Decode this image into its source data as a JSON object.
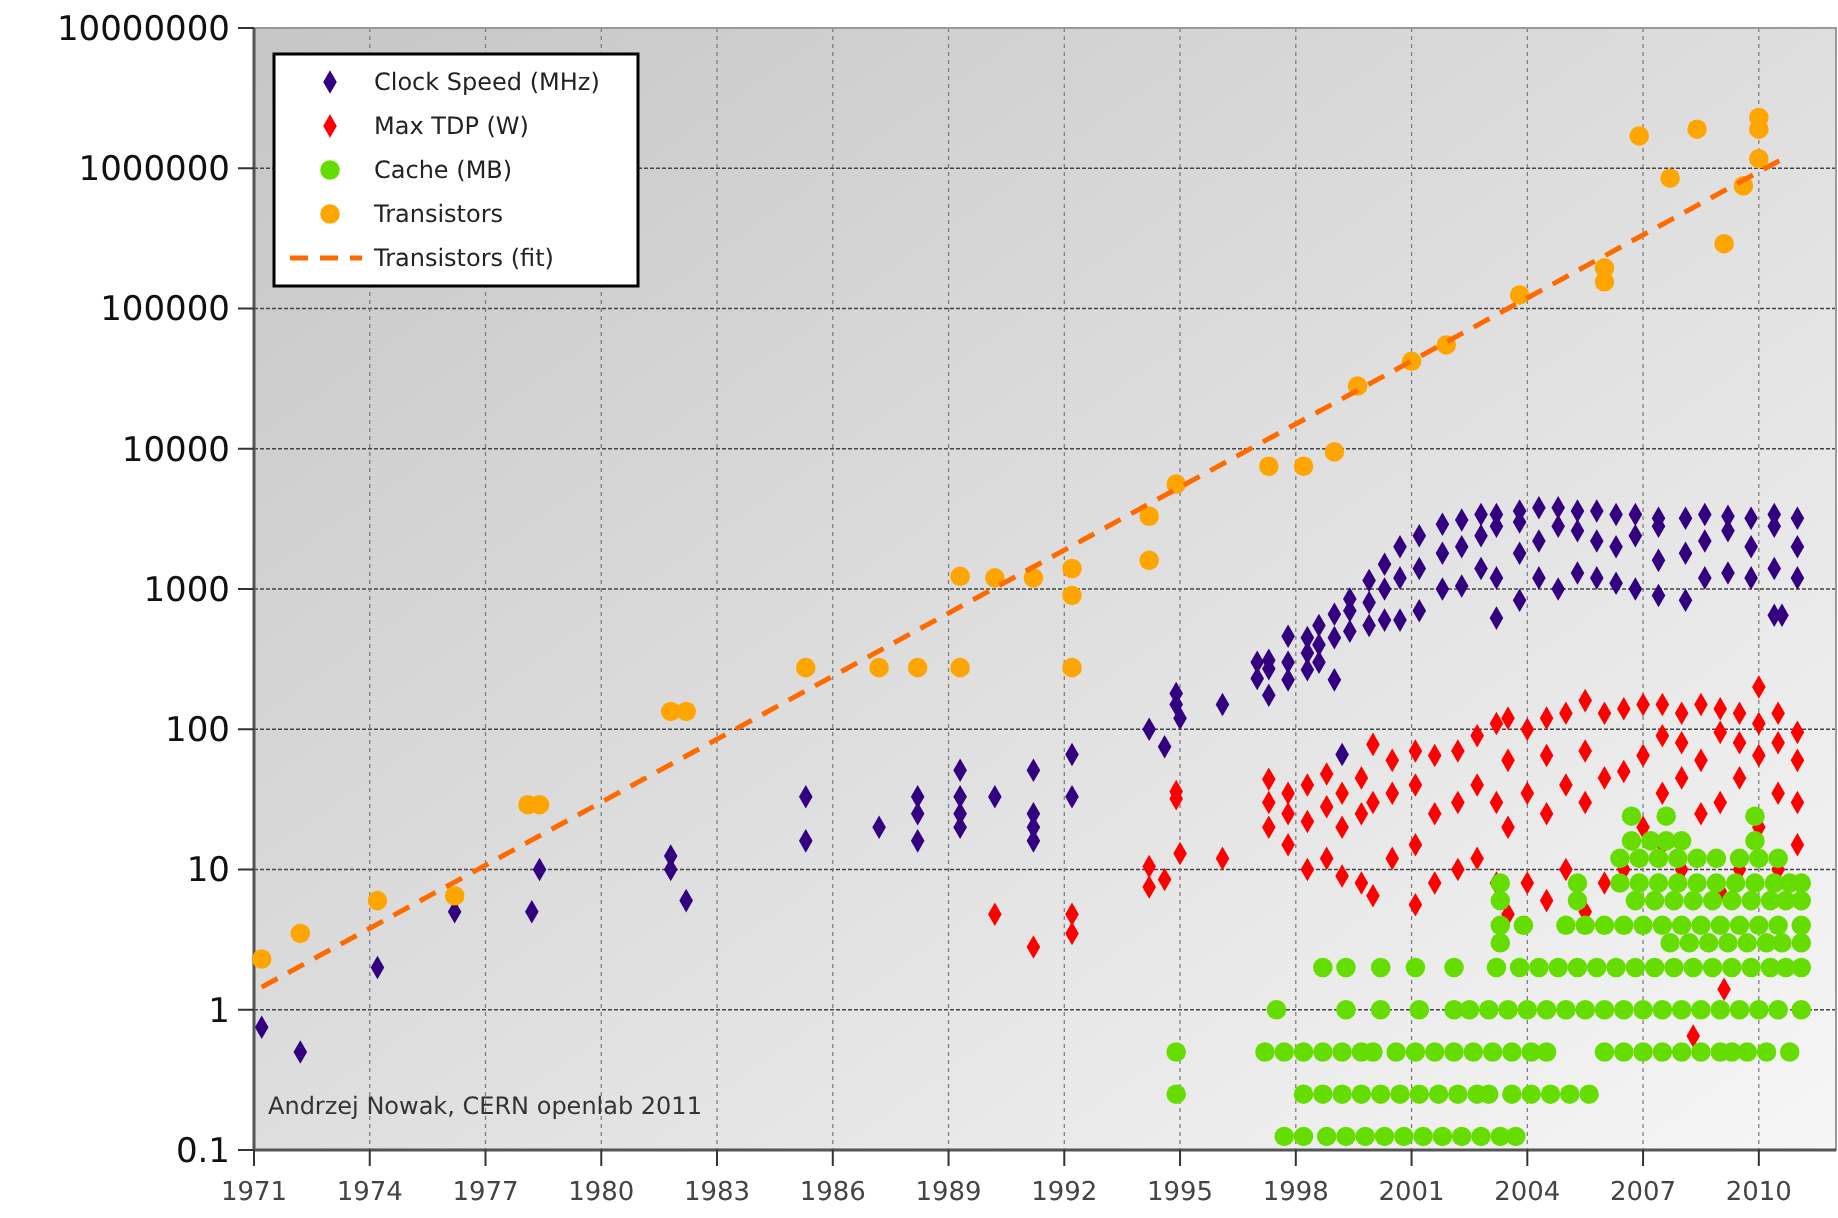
{
  "chart_data": {
    "type": "scatter",
    "xlim": [
      1971,
      2012
    ],
    "xticks": [
      1971,
      1974,
      1977,
      1980,
      1983,
      1986,
      1989,
      1992,
      1995,
      1998,
      2001,
      2004,
      2007,
      2010
    ],
    "ylim": [
      0.1,
      10000000
    ],
    "yticks": [
      0.1,
      1,
      10,
      100,
      1000,
      10000,
      100000,
      1000000,
      10000000
    ],
    "log": "y",
    "grid": true,
    "legend": "top left",
    "annotations": [
      "Andrzej Nowak, CERN openlab 2011"
    ],
    "series": [
      {
        "name": "Clock Speed (MHz)",
        "type": "scatter",
        "marker": "diamond",
        "color": "#330080",
        "x": [
          1971.2,
          1972.2,
          1974.2,
          1976.2,
          1978.2,
          1978.4,
          1981.8,
          1981.8,
          1982.2,
          1985.3,
          1985.3,
          1987.2,
          1988.2,
          1988.2,
          1988.2,
          1989.3,
          1989.3,
          1989.3,
          1989.3,
          1990.2,
          1991.2,
          1991.2,
          1991.2,
          1991.2,
          1992.2,
          1992.2,
          1994.2,
          1994.6,
          1994.9,
          1994.9,
          1995.0,
          1996.1,
          1999.2,
          1997.0,
          1997.0,
          1997.3,
          1997.3,
          1997.3,
          1997.8,
          1997.8,
          1997.8,
          1998.3,
          1998.3,
          1998.3,
          1998.6,
          1998.6,
          1998.6,
          1999.0,
          1999.0,
          1999.0,
          1999.4,
          1999.4,
          1999.4,
          1999.9,
          1999.9,
          1999.9,
          2000.3,
          2000.3,
          2000.3,
          2000.7,
          2000.7,
          2000.7,
          2001.2,
          2001.2,
          2001.2,
          2001.8,
          2001.8,
          2001.8,
          2002.3,
          2002.3,
          2002.3,
          2002.8,
          2002.8,
          2002.8,
          2003.2,
          2003.2,
          2003.2,
          2003.2,
          2003.8,
          2003.8,
          2003.8,
          2003.8,
          2004.3,
          2004.3,
          2004.3,
          2004.8,
          2004.8,
          2004.8,
          2005.3,
          2005.3,
          2005.3,
          2005.8,
          2005.8,
          2005.8,
          2006.3,
          2006.3,
          2006.3,
          2006.8,
          2006.8,
          2006.8,
          2007.4,
          2007.4,
          2007.4,
          2007.4,
          2008.1,
          2008.1,
          2008.1,
          2008.6,
          2008.6,
          2008.6,
          2009.2,
          2009.2,
          2009.2,
          2009.8,
          2009.8,
          2009.8,
          2010.4,
          2010.4,
          2010.4,
          2010.4,
          2010.6,
          2011.0,
          2011.0,
          2011.0
        ],
        "values": [
          0.75,
          0.5,
          2,
          5,
          5,
          10,
          12.5,
          10,
          6,
          33,
          16,
          20,
          33,
          25,
          16,
          51,
          33,
          25,
          20,
          33,
          51,
          25,
          20,
          16,
          66,
          33,
          100,
          75,
          180,
          150,
          120,
          150,
          66,
          230,
          300,
          175,
          310,
          270,
          225,
          300,
          460,
          266,
          350,
          450,
          300,
          400,
          550,
          225,
          450,
          660,
          500,
          700,
          850,
          550,
          800,
          1150,
          600,
          1000,
          1500,
          600,
          1200,
          2000,
          700,
          1400,
          2400,
          1000,
          1800,
          2900,
          1050,
          2000,
          3100,
          1400,
          2400,
          3400,
          620,
          1200,
          2800,
          3400,
          830,
          1800,
          3000,
          3600,
          1200,
          2200,
          3800,
          1000,
          2800,
          3800,
          1300,
          2600,
          3600,
          1200,
          2200,
          3600,
          1100,
          2000,
          3400,
          1000,
          2400,
          3400,
          900,
          1600,
          2800,
          3200,
          830,
          1800,
          3200,
          1200,
          2200,
          3400,
          1300,
          2600,
          3300,
          1200,
          2000,
          3200,
          650,
          1400,
          2800,
          3400,
          650,
          1200,
          2000,
          3200
        ]
      },
      {
        "name": "Max TDP (W)",
        "type": "scatter",
        "marker": "diamond",
        "color": "#ff0000",
        "x": [
          1990.2,
          1991.2,
          1992.2,
          1992.2,
          1994.2,
          1994.2,
          1994.6,
          1994.9,
          1994.9,
          1995.0,
          1996.1,
          1997.3,
          1997.3,
          1997.3,
          1997.8,
          1997.8,
          1997.8,
          1998.3,
          1998.3,
          1998.3,
          1998.8,
          1998.8,
          1998.8,
          1999.2,
          1999.2,
          1999.2,
          1999.7,
          1999.7,
          1999.7,
          2000.0,
          2000.0,
          2000.0,
          2000.5,
          2000.5,
          2000.5,
          2001.1,
          2001.1,
          2001.1,
          2001.1,
          2001.6,
          2001.6,
          2001.6,
          2002.2,
          2002.2,
          2002.2,
          2002.7,
          2002.7,
          2002.7,
          2003.2,
          2003.2,
          2003.2,
          2003.5,
          2003.5,
          2003.5,
          2003.5,
          2004.0,
          2004.0,
          2004.0,
          2004.5,
          2004.5,
          2004.5,
          2004.5,
          2005.0,
          2005.0,
          2005.0,
          2005.5,
          2005.5,
          2005.5,
          2005.5,
          2006.0,
          2006.0,
          2006.0,
          2006.5,
          2006.5,
          2006.5,
          2007.0,
          2007.0,
          2007.0,
          2007.5,
          2007.5,
          2007.5,
          2007.5,
          2008.0,
          2008.0,
          2008.0,
          2008.0,
          2008.3,
          2008.5,
          2008.5,
          2008.5,
          2009.0,
          2009.0,
          2009.0,
          2009.0,
          2009.1,
          2009.5,
          2009.5,
          2009.5,
          2009.5,
          2010.0,
          2010.0,
          2010.0,
          2010.0,
          2010.5,
          2010.5,
          2010.5,
          2010.5,
          2011.0,
          2011.0,
          2011.0,
          2011.0
        ],
        "values": [
          4.8,
          2.8,
          4.8,
          3.5,
          10.5,
          7.5,
          8.5,
          36,
          32,
          13,
          12,
          20,
          30,
          44,
          15,
          25,
          35,
          10,
          22,
          40,
          12,
          28,
          48,
          9,
          20,
          35,
          8,
          25,
          45,
          6.5,
          30,
          78,
          12,
          35,
          60,
          5.6,
          15,
          40,
          70,
          8,
          25,
          65,
          10,
          30,
          70,
          12,
          40,
          90,
          8,
          30,
          110,
          4.8,
          20,
          60,
          120,
          8,
          35,
          100,
          6,
          25,
          65,
          120,
          10,
          40,
          130,
          5,
          30,
          70,
          160,
          8,
          45,
          130,
          10,
          50,
          140,
          20,
          65,
          150,
          15,
          35,
          90,
          150,
          10,
          45,
          80,
          130,
          0.65,
          25,
          60,
          150,
          7,
          30,
          95,
          140,
          1.4,
          10,
          45,
          80,
          130,
          20,
          65,
          110,
          200,
          10,
          35,
          80,
          130,
          15,
          30,
          60,
          95
        ]
      },
      {
        "name": "Cache (MB)",
        "type": "scatter",
        "marker": "circle",
        "color": "#66dd00",
        "x": [
          1997.7,
          1998.2,
          1998.8,
          1999.3,
          1999.8,
          2000.3,
          2000.8,
          2001.3,
          2001.8,
          2002.3,
          2002.8,
          2003.3,
          2003.7,
          1994.9,
          1998.2,
          1998.7,
          1999.2,
          1999.7,
          2000.2,
          2000.7,
          2001.2,
          2001.7,
          2002.2,
          2002.7,
          2003.0,
          2003.6,
          2004.1,
          2004.6,
          2005.1,
          2005.6,
          1994.9,
          1997.2,
          1997.7,
          1998.2,
          1998.7,
          1999.2,
          1999.7,
          2000.0,
          2000.6,
          2001.1,
          2001.6,
          2002.1,
          2002.6,
          2003.1,
          2003.6,
          2004.1,
          2004.5,
          2006.0,
          2006.5,
          2007.0,
          2007.5,
          2008.0,
          2008.5,
          2009.0,
          2009.3,
          2009.7,
          2010.2,
          2010.8,
          1997.5,
          1999.3,
          2000.2,
          2001.2,
          2002.1,
          2002.5,
          2003.0,
          2003.5,
          2004.0,
          2004.5,
          2005.0,
          2005.5,
          2006.0,
          2006.5,
          2007.0,
          2007.5,
          2008.0,
          2008.5,
          2009.0,
          2009.5,
          2010.0,
          2010.5,
          2011.1,
          1998.7,
          1999.3,
          2000.2,
          2001.1,
          2002.1,
          2003.2,
          2003.8,
          2004.3,
          2004.8,
          2005.3,
          2005.8,
          2006.3,
          2006.8,
          2007.3,
          2007.8,
          2008.3,
          2008.8,
          2009.3,
          2009.8,
          2010.3,
          2010.7,
          2011.1,
          2003.3,
          2007.7,
          2008.2,
          2008.7,
          2009.2,
          2009.7,
          2010.2,
          2010.6,
          2011.1,
          2003.3,
          2003.9,
          2005.0,
          2005.5,
          2006.0,
          2006.5,
          2007.0,
          2007.5,
          2008.0,
          2008.5,
          2009.0,
          2009.5,
          2010.0,
          2010.5,
          2011.1,
          2003.3,
          2005.3,
          2006.8,
          2007.3,
          2007.8,
          2008.3,
          2008.8,
          2009.3,
          2009.8,
          2010.3,
          2010.7,
          2011.1,
          2003.3,
          2005.3,
          2006.4,
          2006.9,
          2007.4,
          2007.9,
          2008.4,
          2008.9,
          2009.4,
          2009.9,
          2010.4,
          2010.8,
          2011.1,
          2006.4,
          2006.9,
          2007.4,
          2007.9,
          2008.4,
          2008.9,
          2009.5,
          2010.0,
          2010.5,
          2006.7,
          2007.2,
          2007.6,
          2008.0,
          2009.9,
          2006.7,
          2007.6,
          2009.9
        ],
        "values": [
          0.125,
          0.125,
          0.125,
          0.125,
          0.125,
          0.125,
          0.125,
          0.125,
          0.125,
          0.125,
          0.125,
          0.125,
          0.125,
          0.25,
          0.25,
          0.25,
          0.25,
          0.25,
          0.25,
          0.25,
          0.25,
          0.25,
          0.25,
          0.25,
          0.25,
          0.25,
          0.25,
          0.25,
          0.25,
          0.25,
          0.5,
          0.5,
          0.5,
          0.5,
          0.5,
          0.5,
          0.5,
          0.5,
          0.5,
          0.5,
          0.5,
          0.5,
          0.5,
          0.5,
          0.5,
          0.5,
          0.5,
          0.5,
          0.5,
          0.5,
          0.5,
          0.5,
          0.5,
          0.5,
          0.5,
          0.5,
          0.5,
          0.5,
          1,
          1,
          1,
          1,
          1,
          1,
          1,
          1,
          1,
          1,
          1,
          1,
          1,
          1,
          1,
          1,
          1,
          1,
          1,
          1,
          1,
          1,
          1,
          2,
          2,
          2,
          2,
          2,
          2,
          2,
          2,
          2,
          2,
          2,
          2,
          2,
          2,
          2,
          2,
          2,
          2,
          2,
          2,
          2,
          2,
          3,
          3,
          3,
          3,
          3,
          3,
          3,
          3,
          3,
          4,
          4,
          4,
          4,
          4,
          4,
          4,
          4,
          4,
          4,
          4,
          4,
          4,
          4,
          4,
          6,
          6,
          6,
          6,
          6,
          6,
          6,
          6,
          6,
          6,
          6,
          6,
          8,
          8,
          8,
          8,
          8,
          8,
          8,
          8,
          8,
          8,
          8,
          8,
          8,
          12,
          12,
          12,
          12,
          12,
          12,
          12,
          12,
          12,
          16,
          16,
          16,
          16,
          16,
          24,
          24,
          24
        ]
      },
      {
        "name": "Transistors",
        "type": "scatter",
        "marker": "circle",
        "color": "#ffa500",
        "x": [
          1971.2,
          1972.2,
          1974.2,
          1976.2,
          1978.1,
          1978.4,
          1981.8,
          1982.2,
          1985.3,
          1987.2,
          1988.2,
          1989.3,
          1992.2,
          1989.3,
          1990.2,
          1991.2,
          1992.2,
          1992.2,
          1994.2,
          1994.2,
          1994.9,
          1997.3,
          1998.2,
          1999.0,
          1999.6,
          2001.0,
          2001.9,
          2003.8,
          2006.0,
          2006.0,
          2006.9,
          2007.7,
          2008.4,
          2009.1,
          2009.6,
          2010.0,
          2010.0,
          2010.0
        ],
        "values": [
          2.3,
          3.5,
          6,
          6.5,
          29,
          29,
          134,
          134,
          275,
          275,
          275,
          275,
          275,
          1230,
          1200,
          1200,
          1400,
          900,
          1600,
          3300,
          5600,
          7500,
          7500,
          9500,
          28000,
          42000,
          55000,
          125000,
          195000,
          155000,
          1700000,
          850000,
          1900000,
          290000,
          750000,
          1170000,
          2300000,
          1900000
        ]
      },
      {
        "name": "Transistors (fit)",
        "type": "line",
        "line_style": "dashed",
        "marker": "none",
        "color": "#ff6a00",
        "x": [
          1971.2,
          2010.7
        ],
        "values": [
          1.45,
          1200000
        ]
      }
    ]
  }
}
